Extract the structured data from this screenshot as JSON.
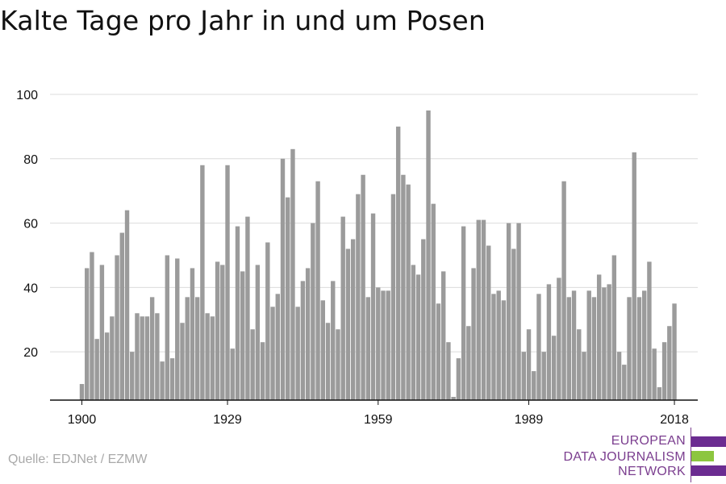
{
  "title": "Kalte Tage pro Jahr in und um Posen",
  "source": "Quelle: EDJNet / EZMW",
  "logo": {
    "lines": [
      "EUROPEAN",
      "DATA JOURNALISM",
      "NETWORK"
    ],
    "colors": {
      "purple": "#6b2c91",
      "green": "#8cc63f"
    }
  },
  "chart_data": {
    "type": "bar",
    "title": "",
    "xlabel": "",
    "ylabel": "",
    "x": [
      1900,
      1901,
      1902,
      1903,
      1904,
      1905,
      1906,
      1907,
      1908,
      1909,
      1910,
      1911,
      1912,
      1913,
      1914,
      1915,
      1916,
      1917,
      1918,
      1919,
      1920,
      1921,
      1922,
      1923,
      1924,
      1925,
      1926,
      1927,
      1928,
      1929,
      1930,
      1931,
      1932,
      1933,
      1934,
      1935,
      1936,
      1937,
      1938,
      1939,
      1940,
      1941,
      1942,
      1943,
      1944,
      1945,
      1946,
      1947,
      1948,
      1949,
      1950,
      1951,
      1952,
      1953,
      1954,
      1955,
      1956,
      1957,
      1958,
      1959,
      1960,
      1961,
      1962,
      1963,
      1964,
      1965,
      1966,
      1967,
      1968,
      1969,
      1970,
      1971,
      1972,
      1973,
      1974,
      1975,
      1976,
      1977,
      1978,
      1979,
      1980,
      1981,
      1982,
      1983,
      1984,
      1985,
      1986,
      1987,
      1988,
      1989,
      1990,
      1991,
      1992,
      1993,
      1994,
      1995,
      1996,
      1997,
      1998,
      1999,
      2000,
      2001,
      2002,
      2003,
      2004,
      2005,
      2006,
      2007,
      2008,
      2009,
      2010,
      2011,
      2012,
      2013,
      2014,
      2015,
      2016,
      2017,
      2018
    ],
    "values": [
      10,
      46,
      51,
      24,
      47,
      26,
      31,
      50,
      57,
      64,
      20,
      32,
      31,
      31,
      37,
      32,
      17,
      50,
      18,
      49,
      29,
      37,
      46,
      37,
      78,
      32,
      31,
      48,
      47,
      78,
      21,
      59,
      45,
      62,
      27,
      47,
      23,
      54,
      34,
      38,
      80,
      68,
      83,
      34,
      42,
      46,
      60,
      73,
      36,
      29,
      42,
      27,
      62,
      52,
      55,
      69,
      75,
      37,
      63,
      40,
      39,
      39,
      69,
      90,
      75,
      72,
      47,
      44,
      55,
      95,
      66,
      35,
      45,
      23,
      6,
      18,
      59,
      28,
      46,
      61,
      61,
      53,
      38,
      39,
      36,
      60,
      52,
      60,
      20,
      27,
      14,
      38,
      20,
      41,
      25,
      43,
      73,
      37,
      39,
      27,
      20,
      39,
      37,
      44,
      40,
      41,
      50,
      20,
      16,
      37,
      82,
      37,
      39,
      48,
      21,
      9,
      23,
      28,
      35
    ],
    "ylim": [
      5,
      100
    ],
    "yticks": [
      20,
      40,
      60,
      80,
      100
    ],
    "xticks": [
      1900,
      1929,
      1959,
      1989,
      2018
    ],
    "grid": true,
    "bar_color": "#9b9b9b"
  }
}
